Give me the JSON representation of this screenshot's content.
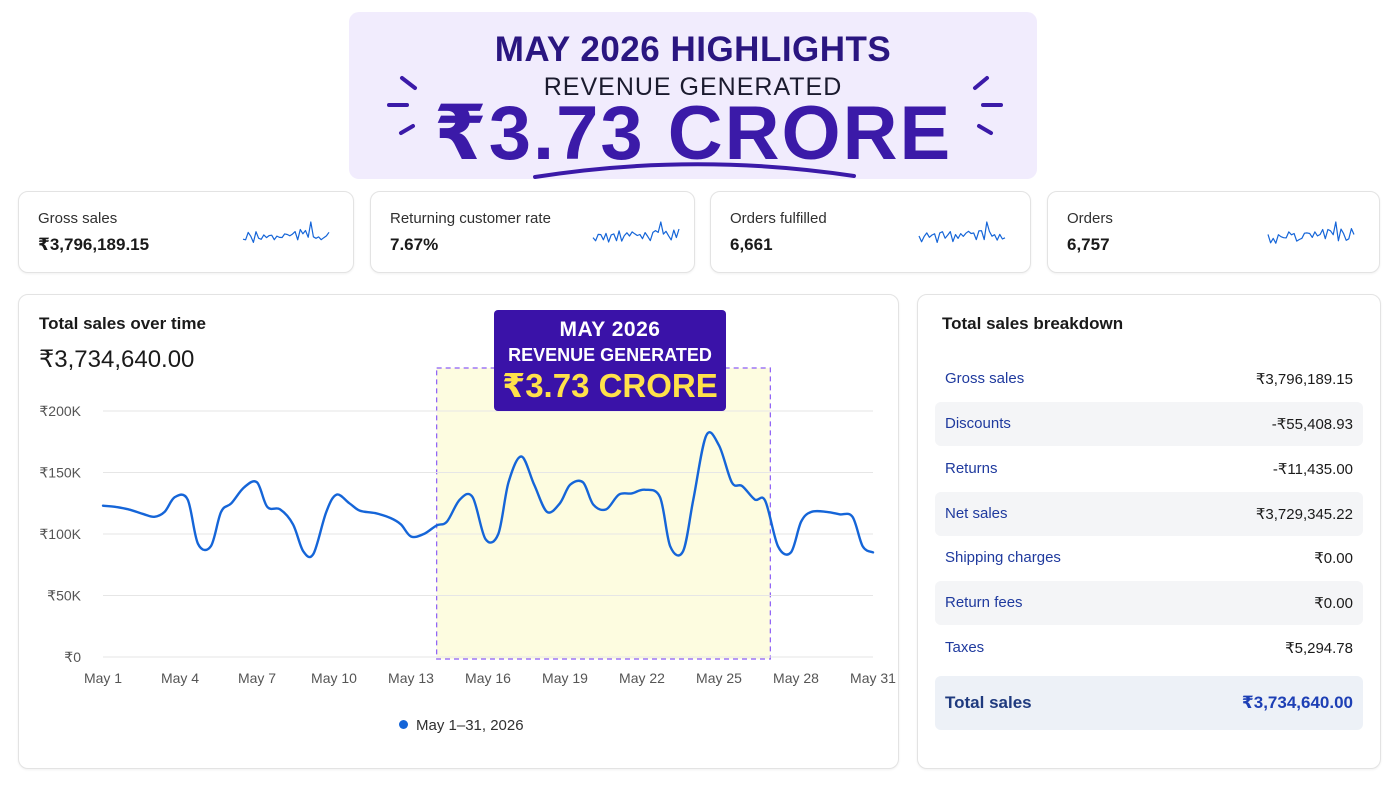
{
  "hero": {
    "title": "MAY 2026 HIGHLIGHTS",
    "subtitle": "REVENUE GENERATED",
    "amount": "₹3.73 CRORE"
  },
  "kpis": [
    {
      "label": "Gross sales",
      "value": "₹3,796,189.15"
    },
    {
      "label": "Returning customer rate",
      "value": "7.67%"
    },
    {
      "label": "Orders fulfilled",
      "value": "6,661"
    },
    {
      "label": "Orders",
      "value": "6,757"
    }
  ],
  "sales_chart": {
    "title": "Total sales over time",
    "total": "₹3,734,640.00",
    "legend": "May 1–31, 2026",
    "callout": {
      "line1": "MAY 2026",
      "line2": "REVENUE GENERATED",
      "line3": "₹3.73 CRORE"
    }
  },
  "chart_data": {
    "type": "line",
    "y_tick_labels": [
      "₹200K",
      "₹150K",
      "₹100K",
      "₹50K",
      "₹0"
    ],
    "x_tick_labels": [
      "May 1",
      "May 4",
      "May 7",
      "May 10",
      "May 13",
      "May 16",
      "May 19",
      "May 22",
      "May 25",
      "May 28",
      "May 31"
    ],
    "ylim": [
      0,
      200000
    ],
    "grid": true,
    "legend_placement": "bottom",
    "highlight_range": [
      "May 14",
      "May 27"
    ],
    "series": [
      {
        "name": "May 1–31, 2026",
        "color": "#1565d8",
        "x": [
          1,
          1.5,
          2,
          2.6,
          3,
          3.4,
          3.8,
          4.3,
          4.7,
          5.2,
          5.6,
          6,
          6.5,
          7,
          7.4,
          7.9,
          8.4,
          8.8,
          9.2,
          9.7,
          10.1,
          10.6,
          11,
          11.6,
          12.2,
          12.6,
          13,
          13.5,
          14,
          14.4,
          14.9,
          15.4,
          15.9,
          16.4,
          16.8,
          17.3,
          17.8,
          18.3,
          18.8,
          19.2,
          19.7,
          20.1,
          20.6,
          21.1,
          21.6,
          22.1,
          22.7,
          23.1,
          23.6,
          24,
          24.5,
          25,
          25.5,
          25.9,
          26.4,
          26.8,
          27.3,
          27.8,
          28.2,
          28.6,
          29.2,
          29.7,
          30.2,
          30.6,
          31
        ],
        "y": [
          123000,
          122000,
          120000,
          116000,
          114000,
          118000,
          130000,
          128000,
          92000,
          90000,
          118000,
          125000,
          138000,
          142000,
          122000,
          120000,
          108000,
          86000,
          84000,
          118000,
          132000,
          125000,
          119000,
          117000,
          113000,
          108000,
          98000,
          100000,
          107000,
          110000,
          128000,
          130000,
          96000,
          100000,
          142000,
          163000,
          140000,
          118000,
          125000,
          140000,
          142000,
          124000,
          120000,
          132000,
          133000,
          136000,
          130000,
          90000,
          86000,
          128000,
          180000,
          172000,
          142000,
          139000,
          128000,
          127000,
          90000,
          85000,
          110000,
          118000,
          118000,
          116000,
          114000,
          90000,
          85000
        ]
      }
    ]
  },
  "breakdown": {
    "title": "Total sales breakdown",
    "rows": [
      {
        "label": "Gross sales",
        "value": "₹3,796,189.15"
      },
      {
        "label": "Discounts",
        "value": "-₹55,408.93"
      },
      {
        "label": "Returns",
        "value": "-₹11,435.00"
      },
      {
        "label": "Net sales",
        "value": "₹3,729,345.22"
      },
      {
        "label": "Shipping charges",
        "value": "₹0.00"
      },
      {
        "label": "Return fees",
        "value": "₹0.00"
      },
      {
        "label": "Taxes",
        "value": "₹5,294.78"
      }
    ],
    "total": {
      "label": "Total sales",
      "value": "₹3,734,640.00"
    }
  },
  "colors": {
    "accent": "#1565d8",
    "hero_bg": "#f1ecfd",
    "hero_text": "#3b1aa8",
    "callout_bg": "#3a12a8",
    "callout_highlight": "#ffe14a",
    "highlight_fill": "#fdfce0",
    "highlight_border": "#8b5cf6"
  },
  "icons": [
    "sparkline-icon",
    "legend-dot-icon",
    "burst-lines-icon"
  ]
}
